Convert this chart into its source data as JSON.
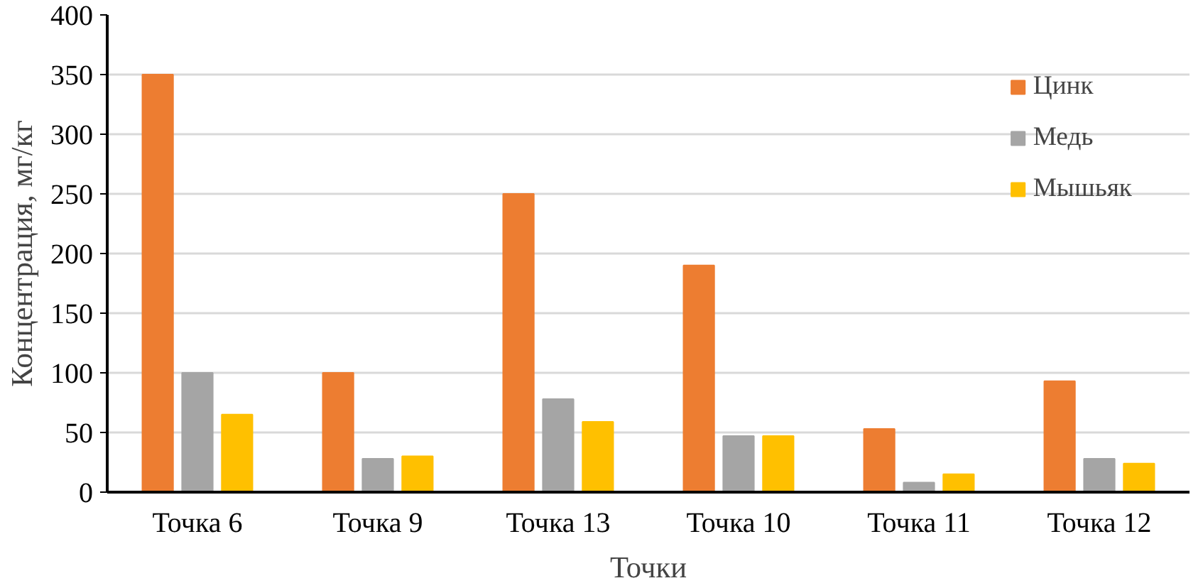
{
  "chart_data": {
    "type": "bar",
    "xlabel": "Точки",
    "ylabel": "Концентрация, мг/кг",
    "categories": [
      "Точка 6",
      "Точка 9",
      "Точка 13",
      "Точка 10",
      "Точка 11",
      "Точка 12"
    ],
    "series": [
      {
        "name": "Цинк",
        "color": "#ed7d31",
        "values": [
          350,
          100,
          250,
          190,
          53,
          93
        ]
      },
      {
        "name": "Медь",
        "color": "#a5a5a5",
        "values": [
          100,
          28,
          78,
          47,
          8,
          28
        ]
      },
      {
        "name": "Мышьяк",
        "color": "#ffc000",
        "values": [
          65,
          30,
          59,
          47,
          15,
          24
        ]
      }
    ],
    "ylim": [
      0,
      400
    ],
    "yticks": [
      0,
      50,
      100,
      150,
      200,
      250,
      300,
      350,
      400
    ],
    "grid": "y",
    "legend": "top right"
  }
}
